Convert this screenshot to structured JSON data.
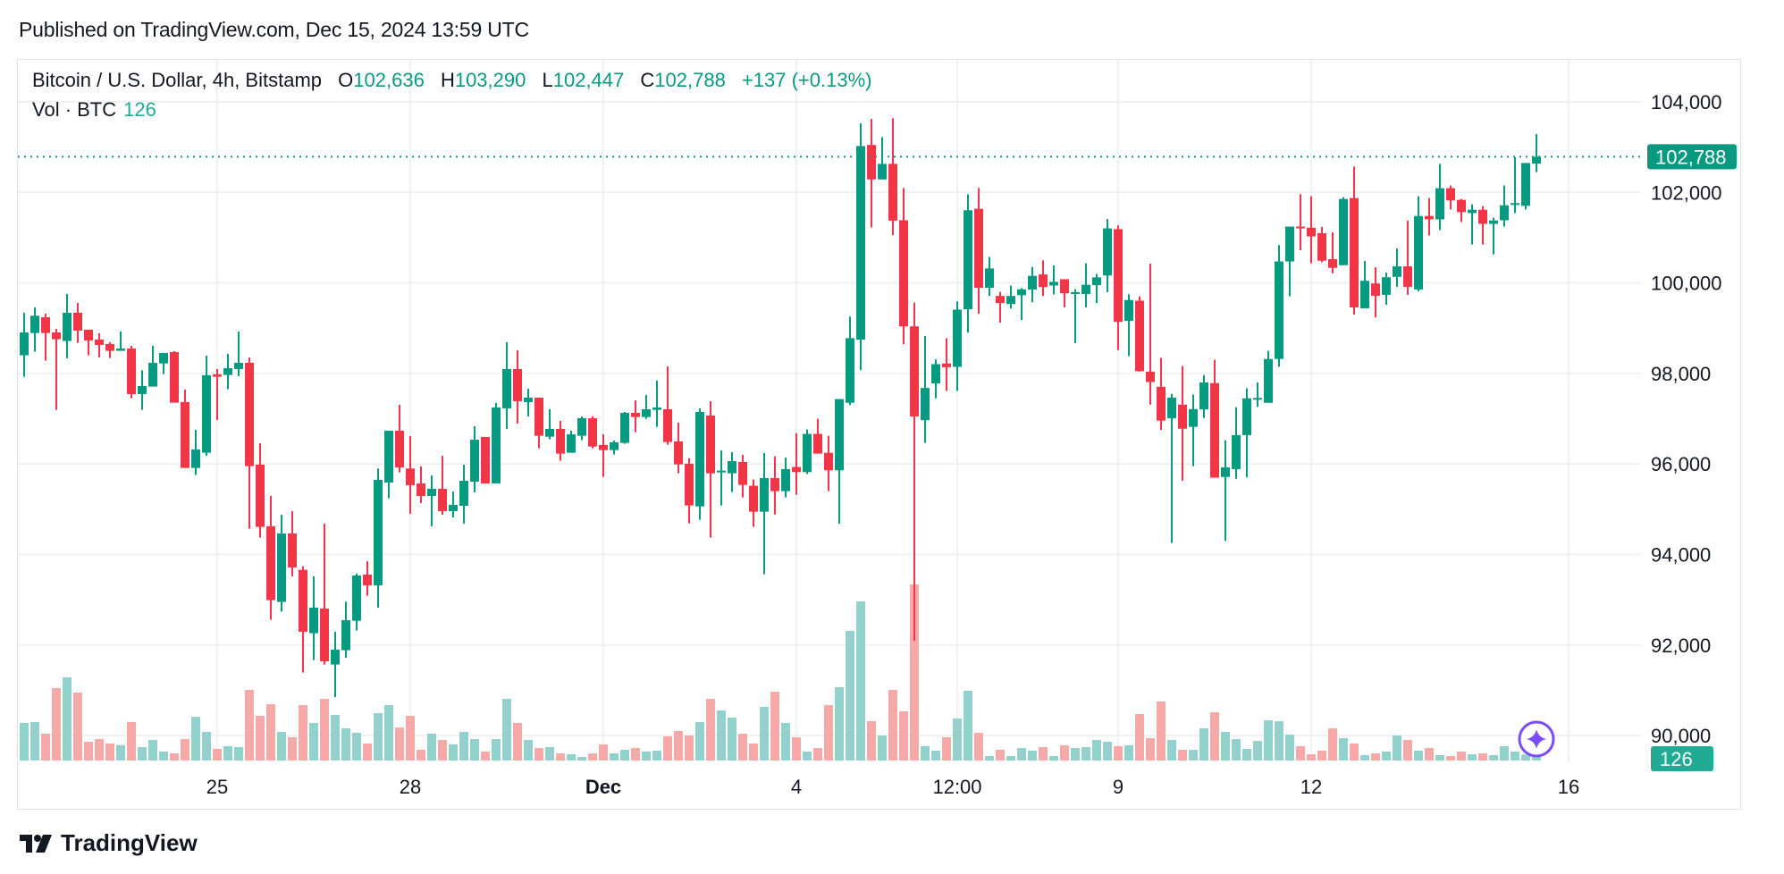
{
  "published": "Published on TradingView.com, Dec 15, 2024 13:59 UTC",
  "legend": {
    "symbol": "Bitcoin / U.S. Dollar, 4h, Bitstamp",
    "o_label": "O",
    "o_value": "102,636",
    "h_label": "H",
    "h_value": "103,290",
    "l_label": "L",
    "l_value": "102,447",
    "c_label": "C",
    "c_value": "102,788",
    "change": "+137 (+0.13%)"
  },
  "volume_legend": {
    "label": "Vol · BTC",
    "value": "126"
  },
  "logo_text": "TradingView",
  "colors": {
    "up": "#089981",
    "down": "#F23645",
    "vol_up": "#92d2cc",
    "vol_down": "#f7a9a7",
    "sparkle": "#7b4dff",
    "grid": "#f0f1f3"
  },
  "icons": [
    "tradingview-logo-icon",
    "sparkle-icon"
  ],
  "chart_data": {
    "type": "candlestick",
    "interval": "4h",
    "ylim": [
      89500,
      104700
    ],
    "y_ticks": [
      "104,000",
      "102,000",
      "100,000",
      "98,000",
      "96,000",
      "94,000",
      "92,000",
      "90,000"
    ],
    "y_tick_values": [
      104000,
      102000,
      100000,
      98000,
      96000,
      94000,
      92000,
      90000
    ],
    "x_ticks": [
      {
        "label": "25",
        "candle": 18,
        "bold": false
      },
      {
        "label": "28",
        "candle": 36,
        "bold": false
      },
      {
        "label": "Dec",
        "candle": 54,
        "bold": true
      },
      {
        "label": "4",
        "candle": 72,
        "bold": false
      },
      {
        "label": "12:00",
        "candle": 87,
        "bold": false
      },
      {
        "label": "9",
        "candle": 102,
        "bold": false
      },
      {
        "label": "12",
        "candle": 120,
        "bold": false
      },
      {
        "label": "16",
        "candle": 144,
        "bold": false
      }
    ],
    "last_price": 102788,
    "last_price_label": "102,788",
    "last_volume_label": "126",
    "grid": true,
    "ohlc_fields": [
      "open",
      "high",
      "low",
      "close"
    ],
    "ohlc": [
      [
        98401,
        99342,
        97927,
        98907
      ],
      [
        98894,
        99460,
        98480,
        99276
      ],
      [
        99243,
        99322,
        98282,
        98894
      ],
      [
        98907,
        98986,
        97197,
        98756
      ],
      [
        98717,
        99756,
        98335,
        99342
      ],
      [
        99342,
        99559,
        98677,
        98947
      ],
      [
        98967,
        98967,
        98401,
        98730
      ],
      [
        98750,
        98888,
        98355,
        98631
      ],
      [
        98651,
        98690,
        98341,
        98500
      ],
      [
        98500,
        98927,
        98500,
        98552
      ],
      [
        98552,
        98611,
        97453,
        97545
      ],
      [
        97545,
        98072,
        97197,
        97723
      ],
      [
        97710,
        98611,
        97710,
        98236
      ],
      [
        98223,
        98453,
        97986,
        98453
      ],
      [
        98473,
        98493,
        97355,
        97355
      ],
      [
        97368,
        97644,
        95913,
        95913
      ],
      [
        95913,
        96756,
        95756,
        96321
      ],
      [
        96249,
        98394,
        96183,
        97960
      ],
      [
        97980,
        98098,
        96973,
        97927
      ],
      [
        97967,
        98434,
        97651,
        98118
      ],
      [
        98098,
        98927,
        97940,
        98236
      ],
      [
        98236,
        98355,
        94571,
        95953
      ],
      [
        95986,
        96460,
        94374,
        94611
      ],
      [
        94624,
        95295,
        92558,
        92992
      ],
      [
        92952,
        94880,
        92736,
        94466
      ],
      [
        94465,
        94959,
        93518,
        93715
      ],
      [
        93662,
        93741,
        91392,
        92294
      ],
      [
        92261,
        93518,
        91668,
        92827
      ],
      [
        92807,
        94682,
        91570,
        91642
      ],
      [
        91570,
        92294,
        90850,
        91899
      ],
      [
        91886,
        92958,
        91721,
        92550
      ],
      [
        92537,
        93577,
        92320,
        93537
      ],
      [
        93557,
        93853,
        93090,
        93320
      ],
      [
        93320,
        95900,
        92827,
        95650
      ],
      [
        95590,
        96735,
        95242,
        96735
      ],
      [
        96735,
        97308,
        95814,
        95926
      ],
      [
        95900,
        96617,
        94900,
        95531
      ],
      [
        95570,
        95946,
        95136,
        95294
      ],
      [
        95294,
        95748,
        94623,
        95452
      ],
      [
        95452,
        96182,
        94880,
        94959
      ],
      [
        94959,
        95393,
        94820,
        95097
      ],
      [
        95077,
        95985,
        94682,
        95630
      ],
      [
        95610,
        96834,
        95373,
        96538
      ],
      [
        96597,
        96597,
        95571,
        95571
      ],
      [
        95571,
        97347,
        95571,
        97249
      ],
      [
        97229,
        98690,
        96775,
        98097
      ],
      [
        98097,
        98512,
        96893,
        97387
      ],
      [
        97367,
        97663,
        97051,
        97466
      ],
      [
        97466,
        97466,
        96347,
        96623
      ],
      [
        96603,
        97209,
        96544,
        96775
      ],
      [
        96775,
        96952,
        96071,
        96229
      ],
      [
        96248,
        96735,
        96248,
        96656
      ],
      [
        96623,
        97051,
        96525,
        97012
      ],
      [
        97012,
        97051,
        96347,
        96386
      ],
      [
        96419,
        96656,
        95715,
        96307
      ],
      [
        96307,
        96518,
        96209,
        96479
      ],
      [
        96465,
        97150,
        96446,
        97130
      ],
      [
        97130,
        97406,
        96702,
        97038
      ],
      [
        97038,
        97525,
        96998,
        97209
      ],
      [
        97196,
        97841,
        96821,
        97249
      ],
      [
        97209,
        98157,
        96426,
        96485
      ],
      [
        96498,
        96913,
        95794,
        95992
      ],
      [
        96005,
        96130,
        94689,
        95084
      ],
      [
        95064,
        97229,
        94768,
        97150
      ],
      [
        97071,
        97387,
        94373,
        95794
      ],
      [
        95814,
        96301,
        95084,
        95854
      ],
      [
        95794,
        96261,
        95380,
        96064
      ],
      [
        96044,
        96202,
        95261,
        95538
      ],
      [
        95518,
        95656,
        94610,
        94945
      ],
      [
        94945,
        96242,
        93564,
        95689
      ],
      [
        95689,
        96169,
        94886,
        95399
      ],
      [
        95399,
        96143,
        95261,
        95887
      ],
      [
        95934,
        96680,
        95320,
        95820
      ],
      [
        95820,
        96762,
        95779,
        96664
      ],
      [
        96664,
        97000,
        96229,
        96229
      ],
      [
        96246,
        96623,
        95401,
        95860
      ],
      [
        95860,
        97434,
        94680,
        97434
      ],
      [
        97352,
        99254,
        97303,
        98779
      ],
      [
        98746,
        103525,
        98074,
        103025
      ],
      [
        103049,
        103623,
        101229,
        102287
      ],
      [
        102287,
        103221,
        102287,
        102631
      ],
      [
        102631,
        103639,
        101057,
        101377
      ],
      [
        101385,
        102098,
        98647,
        99041
      ],
      [
        99041,
        99565,
        92098,
        97049
      ],
      [
        96967,
        98828,
        96467,
        97680
      ],
      [
        97779,
        98311,
        97451,
        98205
      ],
      [
        98221,
        98778,
        97615,
        98139
      ],
      [
        98147,
        99590,
        97615,
        99410
      ],
      [
        99418,
        101959,
        98901,
        101606
      ],
      [
        101639,
        102098,
        99320,
        99893
      ],
      [
        99893,
        100574,
        99713,
        100320
      ],
      [
        99713,
        99803,
        99123,
        99557
      ],
      [
        99533,
        99943,
        99434,
        99713
      ],
      [
        99729,
        99885,
        99180,
        99860
      ],
      [
        99852,
        100352,
        99574,
        100156
      ],
      [
        100188,
        100500,
        99713,
        99910
      ],
      [
        99943,
        100385,
        99746,
        100025
      ],
      [
        100082,
        100082,
        99459,
        99770
      ],
      [
        99762,
        99861,
        98672,
        99795
      ],
      [
        99754,
        100434,
        99459,
        99959
      ],
      [
        99951,
        100197,
        99557,
        100123
      ],
      [
        100164,
        101410,
        99795,
        101205
      ],
      [
        101188,
        101270,
        98516,
        99139
      ],
      [
        99164,
        99746,
        98385,
        99623
      ],
      [
        99607,
        99705,
        98041,
        98049
      ],
      [
        98041,
        100426,
        97311,
        97811
      ],
      [
        97705,
        98344,
        96754,
        96959
      ],
      [
        97008,
        97549,
        94254,
        97467
      ],
      [
        97311,
        98164,
        95631,
        96779
      ],
      [
        96820,
        97533,
        95951,
        97213
      ],
      [
        97205,
        97967,
        97016,
        97803
      ],
      [
        97787,
        98303,
        95697,
        95697
      ],
      [
        95713,
        96525,
        94303,
        95926
      ],
      [
        95885,
        97254,
        95672,
        96639
      ],
      [
        96639,
        97672,
        95705,
        97451
      ],
      [
        97442,
        97803,
        97262,
        97459
      ],
      [
        97352,
        98500,
        97352,
        98320
      ],
      [
        98320,
        100836,
        98147,
        100475
      ],
      [
        100475,
        101245,
        99705,
        101245
      ],
      [
        101245,
        101959,
        100721,
        101205
      ],
      [
        101220,
        101915,
        100432,
        101028
      ],
      [
        101100,
        101240,
        100458,
        100491
      ],
      [
        100525,
        101120,
        100213,
        100333
      ],
      [
        100392,
        101895,
        100392,
        101855
      ],
      [
        101875,
        102570,
        99300,
        99459
      ],
      [
        99439,
        100485,
        99439,
        100048
      ],
      [
        99988,
        100346,
        99240,
        99717
      ],
      [
        99737,
        100227,
        99518,
        100127
      ],
      [
        100134,
        100763,
        99915,
        100366
      ],
      [
        100366,
        101379,
        99737,
        99915
      ],
      [
        99856,
        101915,
        99816,
        101478
      ],
      [
        101478,
        101875,
        101048,
        101405
      ],
      [
        101405,
        102630,
        101167,
        102093
      ],
      [
        102093,
        102153,
        101624,
        101822
      ],
      [
        101835,
        101855,
        101345,
        101564
      ],
      [
        101544,
        101736,
        100849,
        101617
      ],
      [
        101617,
        101696,
        100849,
        101306
      ],
      [
        101306,
        101438,
        100630,
        101379
      ],
      [
        101385,
        102153,
        101246,
        101716
      ],
      [
        101736,
        102775,
        101544,
        101763
      ],
      [
        101703,
        102650,
        101624,
        102650
      ],
      [
        102636,
        103290,
        102447,
        102788
      ]
    ],
    "volume_unit": "BTC",
    "volume": [
      529,
      542,
      378,
      1021,
      1172,
      958,
      265,
      302,
      239,
      218,
      542,
      189,
      290,
      126,
      101,
      302,
      617,
      403,
      164,
      202,
      189,
      995,
      630,
      794,
      403,
      328,
      781,
      529,
      869,
      643,
      454,
      391,
      239,
      668,
      781,
      466,
      630,
      151,
      378,
      290,
      227,
      403,
      302,
      126,
      302,
      869,
      529,
      290,
      176,
      189,
      101,
      88,
      50,
      101,
      227,
      101,
      151,
      176,
      126,
      139,
      340,
      416,
      353,
      542,
      869,
      706,
      605,
      378,
      239,
      756,
      970,
      529,
      328,
      126,
      176,
      781,
      1033,
      1827,
      2243,
      554,
      353,
      995,
      693,
      2482,
      202,
      139,
      328,
      592,
      983,
      391,
      63,
      151,
      63,
      176,
      139,
      189,
      63,
      214,
      176,
      189,
      290,
      265,
      202,
      214,
      655,
      315,
      832,
      290,
      151,
      151,
      454,
      680,
      403,
      302,
      164,
      277,
      567,
      554,
      365,
      202,
      88,
      139,
      454,
      315,
      239,
      76,
      101,
      126,
      353,
      290,
      139,
      176,
      76,
      63,
      126,
      88,
      101,
      76,
      202,
      126,
      84,
      126
    ]
  }
}
